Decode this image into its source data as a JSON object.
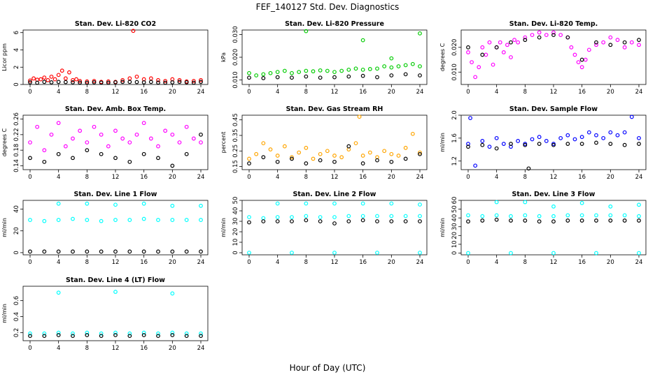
{
  "figure": {
    "title": "FEF_140127  Std. Dev. Diagnostics",
    "xlabel": "Hour of Day (UTC)"
  },
  "chart_data": [
    {
      "type": "scatter",
      "title": "Stan. Dev. Li-820 CO2",
      "ylabel": "Licor ppm",
      "xlim": [
        0,
        24
      ],
      "ylim": [
        0,
        6.3
      ],
      "xticks": [
        "0",
        "4",
        "8",
        "12",
        "16",
        "20",
        "24"
      ],
      "yticks": [
        "0",
        "2",
        "4",
        "6"
      ],
      "series": [
        {
          "color": "#ff0000",
          "x": [
            0,
            0.5,
            1,
            1.5,
            2,
            2.5,
            3,
            3.5,
            4,
            4.5,
            5,
            5.5,
            6,
            6.5,
            7,
            8,
            9,
            10,
            11,
            12,
            13,
            14,
            14.5,
            15,
            16,
            17,
            18,
            19,
            20,
            21,
            22,
            23,
            24
          ],
          "y": [
            0.45,
            0.7,
            0.55,
            0.6,
            0.8,
            0.5,
            0.9,
            0.6,
            1.1,
            1.6,
            0.7,
            1.4,
            0.5,
            0.6,
            0.4,
            0.35,
            0.4,
            0.3,
            0.35,
            0.3,
            0.5,
            0.7,
            6.2,
            0.9,
            0.6,
            0.7,
            0.5,
            0.4,
            0.6,
            0.5,
            0.35,
            0.4,
            0.5
          ]
        },
        {
          "color": "#000000",
          "x": [
            0,
            1,
            2,
            3,
            4,
            5,
            6,
            7,
            8,
            9,
            10,
            11,
            12,
            13,
            14,
            15,
            16,
            17,
            18,
            19,
            20,
            21,
            22,
            23,
            24
          ],
          "y": [
            0.25,
            0.2,
            0.3,
            0.25,
            0.3,
            0.28,
            0.25,
            0.22,
            0.2,
            0.25,
            0.22,
            0.2,
            0.25,
            0.3,
            0.3,
            0.28,
            0.25,
            0.3,
            0.22,
            0.2,
            0.25,
            0.3,
            0.25,
            0.2,
            0.3
          ]
        }
      ]
    },
    {
      "type": "scatter",
      "title": "Stan. Dev. Li-820 Pressure",
      "ylabel": "kPa",
      "xlim": [
        0,
        24
      ],
      "ylim": [
        0.008,
        0.032
      ],
      "xticks": [
        "0",
        "4",
        "8",
        "12",
        "16",
        "20",
        "24"
      ],
      "yticks": [
        "0.010",
        "0.020",
        "0.030"
      ],
      "series": [
        {
          "color": "#00cc00",
          "x": [
            0,
            1,
            2,
            3,
            4,
            5,
            6,
            7,
            8,
            9,
            10,
            11,
            12,
            13,
            14,
            15,
            16,
            17,
            18,
            19,
            20,
            21,
            22,
            23,
            24,
            8,
            16,
            20,
            24
          ],
          "y": [
            0.013,
            0.012,
            0.0125,
            0.013,
            0.0135,
            0.014,
            0.013,
            0.0135,
            0.014,
            0.0138,
            0.0142,
            0.014,
            0.0135,
            0.014,
            0.0145,
            0.015,
            0.0145,
            0.0148,
            0.015,
            0.016,
            0.0155,
            0.016,
            0.0165,
            0.017,
            0.016,
            0.0315,
            0.0275,
            0.0195,
            0.0305
          ]
        },
        {
          "color": "#000000",
          "x": [
            0,
            2,
            4,
            6,
            8,
            10,
            12,
            14,
            16,
            18,
            20,
            22,
            24
          ],
          "y": [
            0.011,
            0.0108,
            0.0112,
            0.011,
            0.0115,
            0.011,
            0.0112,
            0.0115,
            0.0118,
            0.0112,
            0.012,
            0.0125,
            0.012
          ]
        }
      ]
    },
    {
      "type": "scatter",
      "title": "Stan. Dev. Li-820 Temp.",
      "ylabel": "degrees C",
      "xlim": [
        0,
        24
      ],
      "ylim": [
        0.005,
        0.027
      ],
      "xticks": [
        "0",
        "4",
        "8",
        "12",
        "16",
        "20",
        "24"
      ],
      "yticks": [
        "0.010",
        "0.020"
      ],
      "series": [
        {
          "color": "#ff00ff",
          "x": [
            0,
            0.5,
            1,
            1.5,
            2,
            2.5,
            3,
            3.5,
            4,
            4.5,
            5,
            5.5,
            6,
            6.5,
            7,
            8,
            9,
            10,
            11,
            12,
            13,
            14,
            14.5,
            15,
            15.5,
            16,
            16.5,
            17,
            18,
            19,
            20,
            21,
            22,
            23,
            24
          ],
          "y": [
            0.018,
            0.014,
            0.008,
            0.012,
            0.02,
            0.017,
            0.022,
            0.013,
            0.02,
            0.022,
            0.018,
            0.021,
            0.016,
            0.023,
            0.022,
            0.024,
            0.025,
            0.026,
            0.025,
            0.026,
            0.025,
            0.024,
            0.02,
            0.017,
            0.014,
            0.012,
            0.015,
            0.019,
            0.021,
            0.022,
            0.024,
            0.023,
            0.02,
            0.022,
            0.021
          ]
        },
        {
          "color": "#000000",
          "x": [
            0,
            2,
            4,
            6,
            8,
            10,
            12,
            14,
            16,
            18,
            20,
            22,
            24
          ],
          "y": [
            0.02,
            0.017,
            0.02,
            0.022,
            0.023,
            0.024,
            0.025,
            0.024,
            0.015,
            0.022,
            0.021,
            0.022,
            0.023
          ]
        }
      ]
    },
    {
      "type": "scatter",
      "title": "Stan. Dev. Amb. Box Temp.",
      "ylabel": "degrees C",
      "xlim": [
        0,
        24
      ],
      "ylim": [
        0.13,
        0.27
      ],
      "xticks": [
        "0",
        "4",
        "8",
        "12",
        "16",
        "20",
        "24"
      ],
      "yticks": [
        "0.14",
        "0.18",
        "0.22",
        "0.26"
      ],
      "series": [
        {
          "color": "#ff00ff",
          "x": [
            0,
            1,
            2,
            3,
            4,
            5,
            6,
            7,
            8,
            9,
            10,
            11,
            12,
            13,
            14,
            15,
            16,
            17,
            18,
            19,
            20,
            21,
            22,
            23,
            24
          ],
          "y": [
            0.2,
            0.24,
            0.18,
            0.22,
            0.25,
            0.19,
            0.21,
            0.23,
            0.2,
            0.24,
            0.22,
            0.19,
            0.23,
            0.21,
            0.2,
            0.22,
            0.25,
            0.21,
            0.19,
            0.23,
            0.22,
            0.2,
            0.24,
            0.21,
            0.2
          ]
        },
        {
          "color": "#000000",
          "x": [
            0,
            2,
            4,
            6,
            8,
            10,
            12,
            14,
            16,
            18,
            20,
            22,
            24
          ],
          "y": [
            0.16,
            0.15,
            0.17,
            0.16,
            0.18,
            0.17,
            0.16,
            0.15,
            0.17,
            0.16,
            0.14,
            0.17,
            0.22
          ]
        }
      ]
    },
    {
      "type": "scatter",
      "title": "Stan. Dev. Gas Stream RH",
      "ylabel": "percent",
      "xlim": [
        0,
        24
      ],
      "ylim": [
        0.13,
        0.48
      ],
      "xticks": [
        "0",
        "4",
        "8",
        "12",
        "16",
        "20",
        "24"
      ],
      "yticks": [
        "0.15",
        "0.25",
        "0.35",
        "0.45"
      ],
      "series": [
        {
          "color": "#ffa500",
          "x": [
            0,
            1,
            2,
            3,
            4,
            5,
            6,
            7,
            8,
            9,
            10,
            11,
            12,
            13,
            14,
            15,
            15.5,
            16,
            17,
            18,
            19,
            20,
            21,
            22,
            23,
            24
          ],
          "y": [
            0.2,
            0.23,
            0.3,
            0.26,
            0.22,
            0.28,
            0.21,
            0.24,
            0.27,
            0.2,
            0.23,
            0.25,
            0.22,
            0.21,
            0.26,
            0.3,
            0.47,
            0.22,
            0.24,
            0.21,
            0.25,
            0.23,
            0.22,
            0.27,
            0.36,
            0.24
          ]
        },
        {
          "color": "#000000",
          "x": [
            0,
            2,
            4,
            6,
            8,
            10,
            12,
            14,
            16,
            18,
            20,
            22,
            24
          ],
          "y": [
            0.17,
            0.21,
            0.18,
            0.2,
            0.17,
            0.19,
            0.18,
            0.28,
            0.17,
            0.19,
            0.18,
            0.2,
            0.23
          ]
        }
      ]
    },
    {
      "type": "scatter",
      "title": "Stan. Dev. Sample Flow",
      "ylabel": "ml/min",
      "xlim": [
        0,
        24
      ],
      "ylim": [
        1.05,
        2.0
      ],
      "xticks": [
        "0",
        "4",
        "8",
        "12",
        "16",
        "20",
        "24"
      ],
      "yticks": [
        "1.2",
        "1.6",
        "2.0"
      ],
      "series": [
        {
          "color": "#0000ff",
          "x": [
            0,
            0.3,
            1,
            2,
            3,
            4,
            5,
            6,
            7,
            8,
            9,
            10,
            11,
            12,
            13,
            14,
            15,
            16,
            17,
            18,
            19,
            20,
            21,
            22,
            23,
            24
          ],
          "y": [
            1.5,
            1.95,
            1.12,
            1.55,
            1.45,
            1.6,
            1.5,
            1.45,
            1.55,
            1.5,
            1.58,
            1.62,
            1.55,
            1.5,
            1.6,
            1.65,
            1.58,
            1.62,
            1.7,
            1.65,
            1.6,
            1.7,
            1.65,
            1.7,
            1.97,
            1.6
          ]
        },
        {
          "color": "#000000",
          "x": [
            0,
            2,
            4,
            6,
            8,
            8.5,
            10,
            12,
            14,
            16,
            18,
            20,
            22,
            24
          ],
          "y": [
            1.45,
            1.48,
            1.42,
            1.5,
            1.48,
            1.07,
            1.5,
            1.48,
            1.5,
            1.5,
            1.52,
            1.5,
            1.48,
            1.5
          ]
        }
      ]
    },
    {
      "type": "scatter",
      "title": "Stan. Dev. Line 1 Flow",
      "ylabel": "ml/min",
      "xlim": [
        0,
        24
      ],
      "ylim": [
        -2,
        48
      ],
      "xticks": [
        "0",
        "4",
        "8",
        "12",
        "16",
        "20",
        "24"
      ],
      "yticks": [
        "0",
        "20",
        "40"
      ],
      "series": [
        {
          "color": "#00ffff",
          "x": [
            0,
            2,
            4,
            6,
            8,
            10,
            12,
            14,
            16,
            18,
            20,
            22,
            24,
            4,
            8,
            12,
            16,
            20,
            24
          ],
          "y": [
            30,
            29,
            30,
            31,
            30,
            29,
            30,
            30,
            31,
            30,
            30,
            30,
            30,
            45,
            45,
            44,
            45,
            43,
            43
          ]
        },
        {
          "color": "#000000",
          "x": [
            0,
            2,
            4,
            6,
            8,
            10,
            12,
            14,
            16,
            18,
            20,
            22,
            24
          ],
          "y": [
            1,
            1,
            1,
            1,
            1,
            1,
            1,
            1,
            1,
            1,
            1,
            1,
            1
          ]
        }
      ]
    },
    {
      "type": "scatter",
      "title": "Stan. Dev. Line 2 Flow",
      "ylabel": "ml/min",
      "xlim": [
        0,
        24
      ],
      "ylim": [
        -2,
        50
      ],
      "xticks": [
        "0",
        "4",
        "8",
        "12",
        "16",
        "20",
        "24"
      ],
      "yticks": [
        "0",
        "10",
        "20",
        "30",
        "40",
        "50"
      ],
      "series": [
        {
          "color": "#00ffff",
          "x": [
            0,
            2,
            4,
            6,
            8,
            10,
            12,
            14,
            16,
            18,
            20,
            22,
            24,
            4,
            8,
            12,
            16,
            20,
            24,
            0,
            6,
            12,
            18,
            24
          ],
          "y": [
            34,
            33,
            34,
            34,
            35,
            34,
            34,
            35,
            35,
            35,
            35,
            35,
            35,
            47,
            47,
            47,
            47,
            47,
            46,
            0,
            0,
            0,
            0,
            0
          ]
        },
        {
          "color": "#000000",
          "x": [
            0,
            2,
            4,
            6,
            8,
            10,
            12,
            14,
            16,
            18,
            20,
            22,
            24
          ],
          "y": [
            29,
            30,
            30,
            30,
            31,
            30,
            28,
            30,
            31,
            30,
            30,
            30,
            30
          ]
        }
      ]
    },
    {
      "type": "scatter",
      "title": "Stan. Dev. Line 3 Flow",
      "ylabel": "ml/min",
      "xlim": [
        0,
        24
      ],
      "ylim": [
        -2,
        60
      ],
      "xticks": [
        "0",
        "4",
        "8",
        "12",
        "16",
        "20",
        "24"
      ],
      "yticks": [
        "0",
        "10",
        "20",
        "30",
        "40",
        "50",
        "60"
      ],
      "series": [
        {
          "color": "#00ffff",
          "x": [
            0,
            2,
            4,
            6,
            8,
            10,
            12,
            14,
            16,
            18,
            20,
            22,
            24,
            4,
            8,
            12,
            16,
            20,
            24,
            0,
            6,
            12,
            18,
            24
          ],
          "y": [
            43,
            42,
            43,
            42,
            43,
            42,
            42,
            43,
            43,
            43,
            43,
            43,
            42,
            58,
            58,
            53,
            57,
            53,
            55,
            0,
            0,
            0,
            0,
            0
          ]
        },
        {
          "color": "#000000",
          "x": [
            0,
            2,
            4,
            6,
            8,
            10,
            12,
            14,
            16,
            18,
            20,
            22,
            24
          ],
          "y": [
            36,
            37,
            38,
            37,
            37,
            36,
            36,
            37,
            37,
            37,
            37,
            37,
            37
          ]
        }
      ]
    },
    {
      "type": "scatter",
      "title": "Stan. Dev. Line 4 (LT) Flow",
      "ylabel": "ml/min",
      "xlim": [
        0,
        24
      ],
      "ylim": [
        0.1,
        0.78
      ],
      "xticks": [
        "0",
        "4",
        "8",
        "12",
        "16",
        "20",
        "24"
      ],
      "yticks": [
        "0.2",
        "0.4",
        "0.6"
      ],
      "series": [
        {
          "color": "#00ffff",
          "x": [
            0,
            2,
            4,
            6,
            8,
            10,
            12,
            14,
            16,
            18,
            20,
            22,
            24,
            4,
            12,
            20
          ],
          "y": [
            0.19,
            0.19,
            0.2,
            0.19,
            0.2,
            0.19,
            0.2,
            0.19,
            0.2,
            0.19,
            0.2,
            0.19,
            0.19,
            0.7,
            0.71,
            0.69
          ]
        },
        {
          "color": "#000000",
          "x": [
            0,
            2,
            4,
            6,
            8,
            10,
            12,
            14,
            16,
            18,
            20,
            22,
            24
          ],
          "y": [
            0.16,
            0.16,
            0.17,
            0.16,
            0.17,
            0.16,
            0.17,
            0.16,
            0.17,
            0.16,
            0.17,
            0.16,
            0.16
          ]
        }
      ]
    }
  ]
}
